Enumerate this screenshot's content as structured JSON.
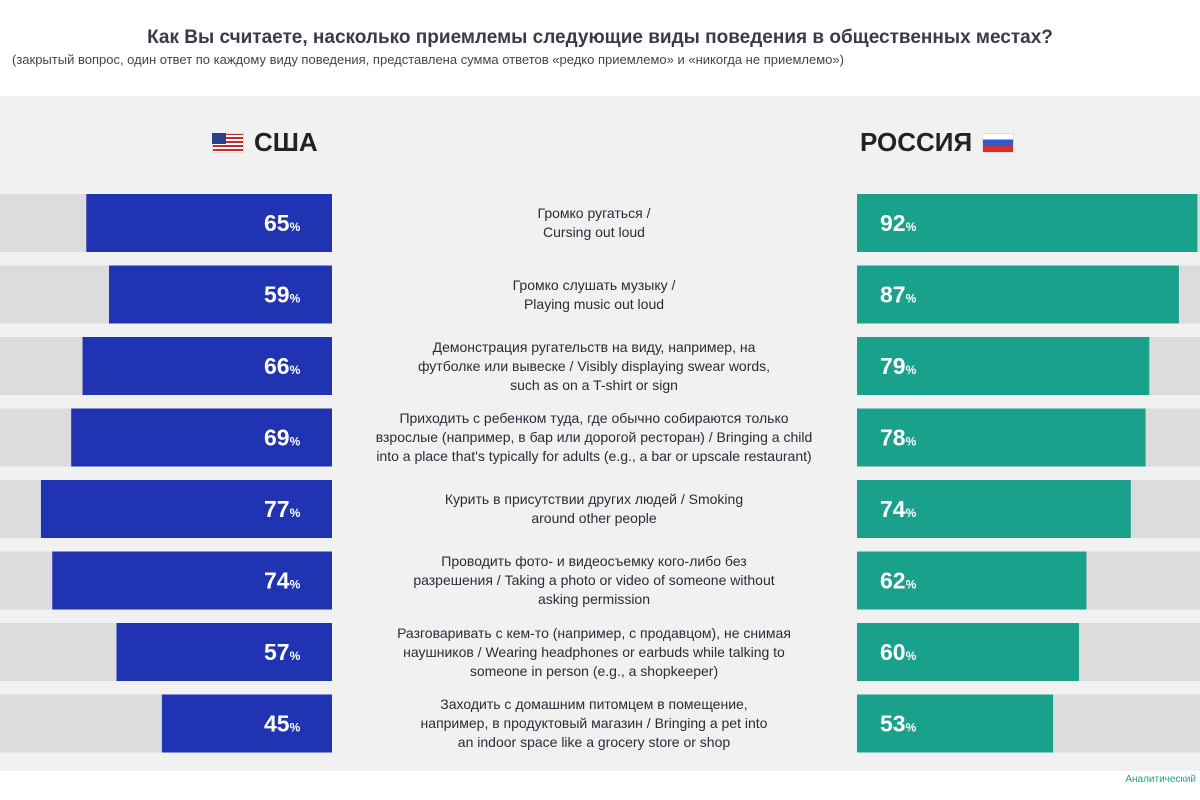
{
  "title": "Как Вы считаете, насколько приемлемы следующие виды поведения в общественных местах?",
  "subtitle": "(закрытый вопрос, один ответ по каждому виду поведения, представлена сумма ответов «редко приемлемо» и «никогда не приемлемо»)",
  "left_country": "США",
  "right_country": "РОССИЯ",
  "source": "Аналитический",
  "colors": {
    "usa": "#1f33b3",
    "russia": "#1aa18c",
    "track": "#dcdcdc",
    "panel": "#f1f1f1"
  },
  "chart_data": {
    "type": "bar",
    "unit": "%",
    "categories": [
      "Громко ругаться /\nCursing out loud",
      "Громко слушать музыку /\nPlaying music out loud",
      "Демонстрация ругательств на виду, например, на\nфутболке или вывеске / Visibly displaying swear words,\nsuch as on a T-shirt or sign",
      "Приходить с ребенком туда, где обычно собираются только\nвзрослые (например, в бар или дорогой ресторан) / Bringing a child\ninto a place that's typically for adults (e.g., a bar or upscale restaurant)",
      "Курить в присутствии других людей / Smoking\naround other people",
      "Проводить фото- и видеосъемку кого-либо без\nразрешения / Taking a photo or video of someone without\nasking permission",
      "Разговаривать с кем-то (например, с продавцом), не снимая\nнаушников / Wearing headphones or earbuds while talking to\nsomeone in person (e.g., a shopkeeper)",
      "Заходить с домашним питомцем в помещение,\nнапример, в продуктовый магазин / Bringing a pet into\nan indoor space like a grocery store or shop"
    ],
    "series": [
      {
        "name": "США",
        "values": [
          65,
          59,
          66,
          69,
          77,
          74,
          57,
          45
        ]
      },
      {
        "name": "РОССИЯ",
        "values": [
          92,
          87,
          79,
          78,
          74,
          62,
          60,
          53
        ]
      }
    ],
    "ylim": [
      0,
      100
    ]
  }
}
